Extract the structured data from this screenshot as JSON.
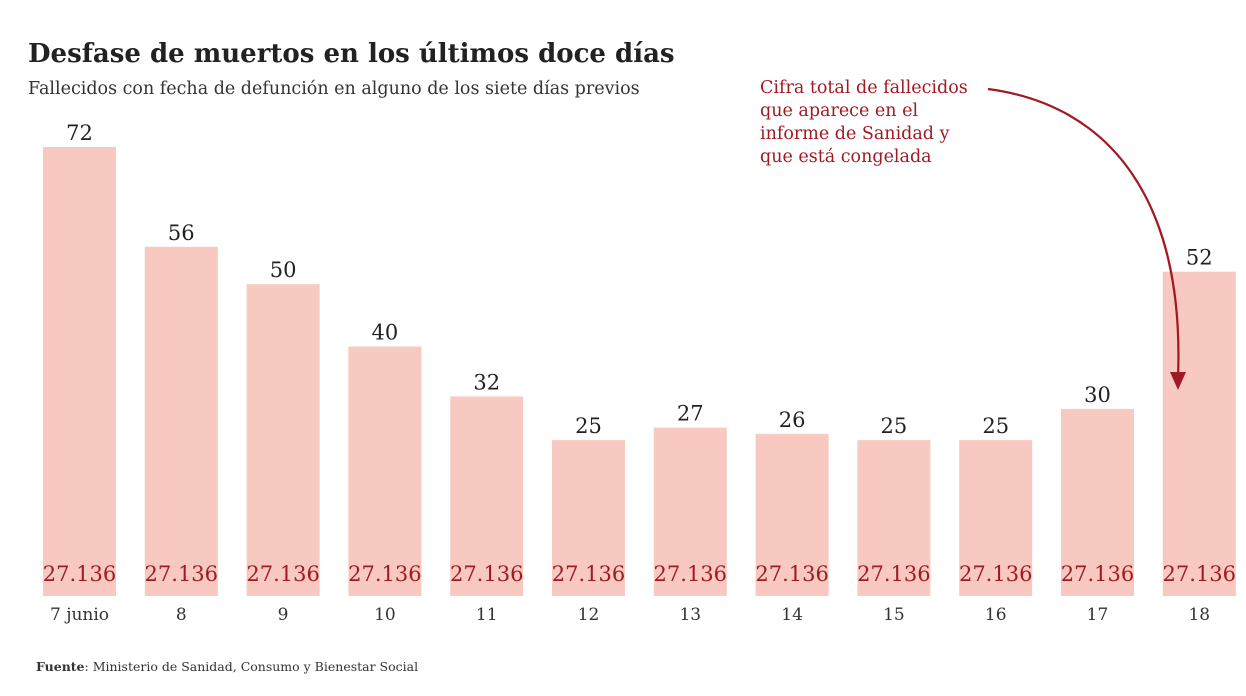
{
  "chart_data": {
    "type": "bar",
    "title": "Desfase de muertos en los últimos doce días",
    "subtitle": "Fallecidos con fecha de defunción en alguno de los siete días previos",
    "categories": [
      "7 junio",
      "8",
      "9",
      "10",
      "11",
      "12",
      "13",
      "14",
      "15",
      "16",
      "17",
      "18"
    ],
    "values": [
      72,
      56,
      50,
      40,
      32,
      25,
      27,
      26,
      25,
      25,
      30,
      52
    ],
    "inner_labels": [
      "27.136",
      "27.136",
      "27.136",
      "27.136",
      "27.136",
      "27.136",
      "27.136",
      "27.136",
      "27.136",
      "27.136",
      "27.136",
      "27.136"
    ],
    "xlabel": "",
    "ylabel": "",
    "ylim": [
      0,
      72
    ],
    "grid": false,
    "annotation": {
      "lines": [
        "Cifra total de fallecidos",
        "que aparece en el",
        "informe de Sanidad y",
        "que está congelada"
      ],
      "target_category": "18"
    },
    "source_label": "Fuente",
    "source_text": ": Ministerio de Sanidad, Consumo y Bienestar Social"
  },
  "colors": {
    "bar": "#f7c9c0",
    "accent": "#a11a23",
    "text": "#222222"
  }
}
